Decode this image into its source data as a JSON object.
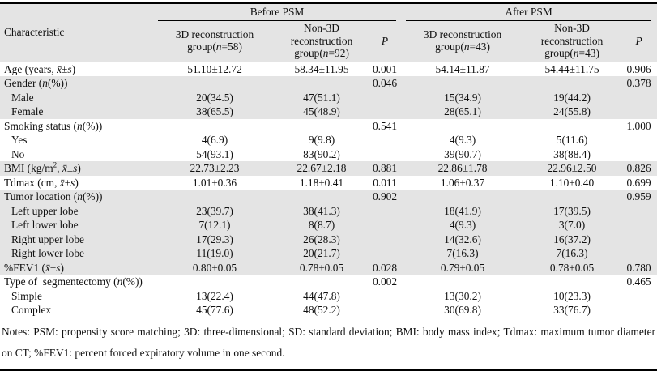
{
  "colors": {
    "stripe": "#e4e4e4",
    "border": "#000000",
    "text": "#111111",
    "background": "#ffffff"
  },
  "table": {
    "headers": {
      "characteristic": "Characteristic",
      "before_psm": "Before PSM",
      "after_psm": "After PSM",
      "before_3d": "3D reconstruction group(<i>n</i>=58)",
      "before_non3d": "Non-3D reconstruction group(<i>n</i>=92)",
      "after_3d": "3D reconstruction group(<i>n</i>=43)",
      "after_non3d": "Non-3D reconstruction group(<i>n</i>=43)",
      "p": "<i>P</i>"
    },
    "rows": [
      {
        "label": "Age (years, <i>x̄</i>±<i>s</i>)",
        "indent": false,
        "shaded": false,
        "before_3d": "51.10±12.72",
        "before_non3d": "58.34±11.95",
        "before_p": "0.001",
        "after_3d": "54.14±11.87",
        "after_non3d": "54.44±11.75",
        "after_p": "0.906"
      },
      {
        "label": "Gender (<i>n</i>(%))",
        "indent": false,
        "shaded": true,
        "before_3d": "",
        "before_non3d": "",
        "before_p": "0.046",
        "after_3d": "",
        "after_non3d": "",
        "after_p": "0.378"
      },
      {
        "label": "Male",
        "indent": true,
        "shaded": true,
        "before_3d": "20(34.5)",
        "before_non3d": "47(51.1)",
        "before_p": "",
        "after_3d": "15(34.9)",
        "after_non3d": "19(44.2)",
        "after_p": ""
      },
      {
        "label": "Female",
        "indent": true,
        "shaded": true,
        "before_3d": "38(65.5)",
        "before_non3d": "45(48.9)",
        "before_p": "",
        "after_3d": "28(65.1)",
        "after_non3d": "24(55.8)",
        "after_p": ""
      },
      {
        "label": "Smoking status (<i>n</i>(%))",
        "indent": false,
        "shaded": false,
        "before_3d": "",
        "before_non3d": "",
        "before_p": "0.541",
        "after_3d": "",
        "after_non3d": "",
        "after_p": "1.000"
      },
      {
        "label": "Yes",
        "indent": true,
        "shaded": false,
        "before_3d": "4(6.9)",
        "before_non3d": "9(9.8)",
        "before_p": "",
        "after_3d": "4(9.3)",
        "after_non3d": "5(11.6)",
        "after_p": ""
      },
      {
        "label": "No",
        "indent": true,
        "shaded": false,
        "before_3d": "54(93.1)",
        "before_non3d": "83(90.2)",
        "before_p": "",
        "after_3d": "39(90.7)",
        "after_non3d": "38(88.4)",
        "after_p": ""
      },
      {
        "label": "BMI (kg/m<sup>2</sup>, <i>x̄</i>±<i>s</i>)",
        "indent": false,
        "shaded": true,
        "before_3d": "22.73±2.23",
        "before_non3d": "22.67±2.18",
        "before_p": "0.881",
        "after_3d": "22.86±1.78",
        "after_non3d": "22.96±2.50",
        "after_p": "0.826"
      },
      {
        "label": "Tdmax (cm, <i>x̄</i>±<i>s</i>)",
        "indent": false,
        "shaded": false,
        "before_3d": "1.01±0.36",
        "before_non3d": "1.18±0.41",
        "before_p": "0.011",
        "after_3d": "1.06±0.37",
        "after_non3d": "1.10±0.40",
        "after_p": "0.699"
      },
      {
        "label": "Tumor location (<i>n</i>(%))",
        "indent": false,
        "shaded": true,
        "before_3d": "",
        "before_non3d": "",
        "before_p": "0.902",
        "after_3d": "",
        "after_non3d": "",
        "after_p": "0.959"
      },
      {
        "label": "Left upper lobe",
        "indent": true,
        "shaded": true,
        "before_3d": "23(39.7)",
        "before_non3d": "38(41.3)",
        "before_p": "",
        "after_3d": "18(41.9)",
        "after_non3d": "17(39.5)",
        "after_p": ""
      },
      {
        "label": "Left lower lobe",
        "indent": true,
        "shaded": true,
        "before_3d": "7(12.1)",
        "before_non3d": "8(8.7)",
        "before_p": "",
        "after_3d": "4(9.3)",
        "after_non3d": "3(7.0)",
        "after_p": ""
      },
      {
        "label": "Right upper lobe",
        "indent": true,
        "shaded": true,
        "before_3d": "17(29.3)",
        "before_non3d": "26(28.3)",
        "before_p": "",
        "after_3d": "14(32.6)",
        "after_non3d": "16(37.2)",
        "after_p": ""
      },
      {
        "label": "Right lower lobe",
        "indent": true,
        "shaded": true,
        "before_3d": "11(19.0)",
        "before_non3d": "20(21.7)",
        "before_p": "",
        "after_3d": "7(16.3)",
        "after_non3d": "7(16.3)",
        "after_p": ""
      },
      {
        "label": "%FEV1 (<i>x̄</i>±<i>s</i>)",
        "indent": false,
        "shaded": true,
        "before_3d": "0.80±0.05",
        "before_non3d": "0.78±0.05",
        "before_p": "0.028",
        "after_3d": "0.79±0.05",
        "after_non3d": "0.78±0.05",
        "after_p": "0.780"
      },
      {
        "label": "Type of  segmentectomy (<i>n</i>(%))",
        "indent": false,
        "shaded": false,
        "before_3d": "",
        "before_non3d": "",
        "before_p": "0.002",
        "after_3d": "",
        "after_non3d": "",
        "after_p": "0.465"
      },
      {
        "label": "Simple",
        "indent": true,
        "shaded": false,
        "before_3d": "13(22.4)",
        "before_non3d": "44(47.8)",
        "before_p": "",
        "after_3d": "13(30.2)",
        "after_non3d": "10(23.3)",
        "after_p": ""
      },
      {
        "label": "Complex",
        "indent": true,
        "shaded": false,
        "before_3d": "45(77.6)",
        "before_non3d": "48(52.2)",
        "before_p": "",
        "after_3d": "30(69.8)",
        "after_non3d": "33(76.7)",
        "after_p": ""
      }
    ]
  },
  "notes": "Notes: PSM: propensity score matching; 3D: three-dimensional; SD: standard deviation; BMI: body mass index; Tdmax: maximum tumor diameter on CT; %FEV1: percent forced expiratory volume in one second."
}
